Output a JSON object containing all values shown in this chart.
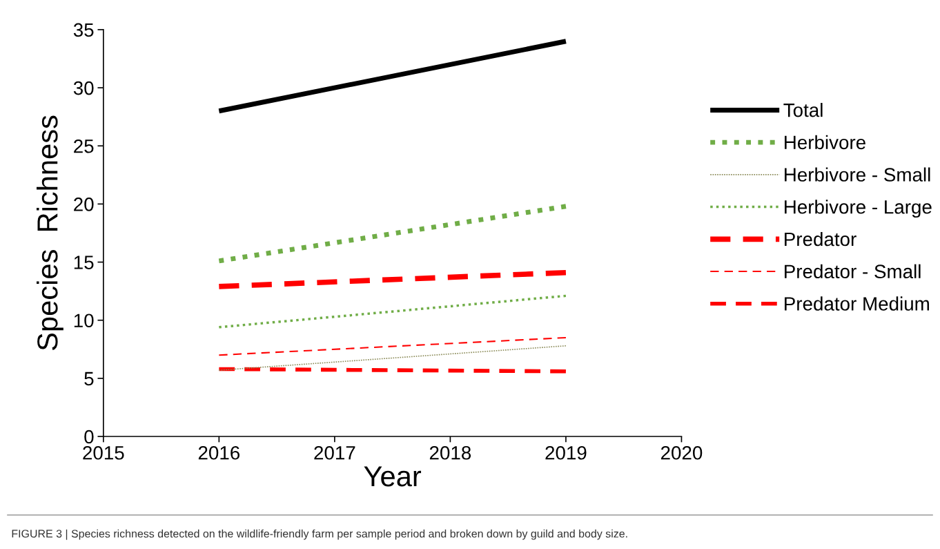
{
  "chart_data": {
    "type": "line",
    "xlabel": "Year",
    "ylabel": "Species  Richness",
    "x": [
      2016,
      2019
    ],
    "xlim": [
      2015,
      2020
    ],
    "xticks": [
      2015,
      2016,
      2017,
      2018,
      2019,
      2020
    ],
    "ylim": [
      0,
      35
    ],
    "yticks": [
      0,
      5,
      10,
      15,
      20,
      25,
      30,
      35
    ],
    "grid": false,
    "legend": "right",
    "marker": "none",
    "series": [
      {
        "name": "Total",
        "color": "#000000",
        "line_style": "solid",
        "values": [
          28,
          34
        ]
      },
      {
        "name": "Herbivore",
        "color": "#70ad47",
        "line_style": "dotted",
        "values": [
          15.1,
          19.8
        ]
      },
      {
        "name": "Herbivore - Small",
        "color": "#8c8c5a",
        "line_style": "dotted",
        "values": [
          5.7,
          7.8
        ]
      },
      {
        "name": "Herbivore - Large",
        "color": "#70ad47",
        "line_style": "dotted",
        "values": [
          9.4,
          12.1
        ]
      },
      {
        "name": "Predator",
        "color": "#ff0000",
        "line_style": "dashed",
        "values": [
          12.9,
          14.1
        ]
      },
      {
        "name": "Predator - Small",
        "color": "#ff0000",
        "line_style": "dashed",
        "values": [
          7.0,
          8.5
        ]
      },
      {
        "name": "Predator Medium",
        "color": "#ff0000",
        "line_style": "dashed",
        "values": [
          5.8,
          5.6
        ]
      }
    ],
    "annotations": [
      "FIGURE 3 | Species richness detected on the wildlife-friendly farm per sample period and broken down by guild and body size."
    ]
  }
}
